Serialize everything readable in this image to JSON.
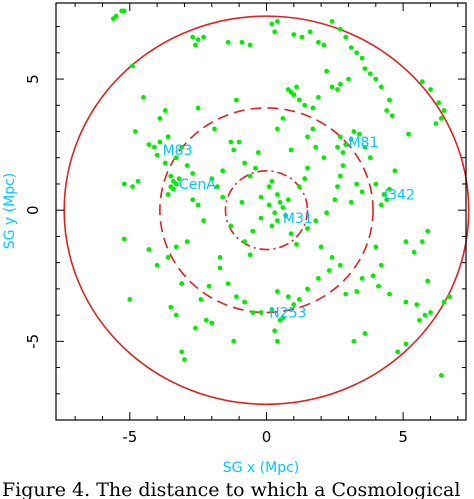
{
  "caption": "Figure 4.  The distance to which a Cosmological",
  "chart_data": {
    "type": "scatter",
    "xlabel": "SG x (Mpc)",
    "ylabel": "SG y (Mpc)",
    "xlim": [
      -7.7,
      7.3
    ],
    "ylim": [
      -8.0,
      7.9
    ],
    "xticks": [
      -5,
      0,
      5
    ],
    "yticks": [
      -5,
      0,
      5
    ],
    "axis_label_color": "#00c8ff",
    "point_color": "#00ee00",
    "circle_color": "#dd2020",
    "circles": [
      {
        "radius": 7.4,
        "style": "solid"
      },
      {
        "radius": 3.9,
        "style": "dashed"
      },
      {
        "radius": 1.5,
        "style": "dash-dot"
      }
    ],
    "points": [
      [
        -5.5,
        7.4
      ],
      [
        -5.3,
        7.6
      ],
      [
        -5.6,
        7.3
      ],
      [
        -5.2,
        7.6
      ],
      [
        -4.9,
        5.5
      ],
      [
        -2.7,
        6.6
      ],
      [
        -2.6,
        6.3
      ],
      [
        -2.5,
        6.5
      ],
      [
        -2.3,
        6.6
      ],
      [
        -1.4,
        6.4
      ],
      [
        -0.9,
        6.4
      ],
      [
        -0.6,
        6.3
      ],
      [
        0.3,
        6.8
      ],
      [
        0.2,
        7.1
      ],
      [
        0.4,
        7.2
      ],
      [
        1.0,
        6.7
      ],
      [
        1.3,
        6.6
      ],
      [
        1.6,
        6.8
      ],
      [
        1.9,
        6.4
      ],
      [
        2.1,
        6.3
      ],
      [
        2.4,
        7.2
      ],
      [
        2.7,
        6.9
      ],
      [
        2.9,
        6.6
      ],
      [
        3.1,
        6.2
      ],
      [
        3.3,
        6.0
      ],
      [
        3.5,
        5.8
      ],
      [
        3.6,
        5.4
      ],
      [
        3.8,
        5.2
      ],
      [
        3.0,
        5.0
      ],
      [
        2.7,
        4.8
      ],
      [
        2.2,
        5.3
      ],
      [
        2.4,
        4.7
      ],
      [
        2.6,
        4.6
      ],
      [
        1.9,
        4.3
      ],
      [
        1.7,
        3.9
      ],
      [
        1.2,
        4.2
      ],
      [
        1.4,
        4.0
      ],
      [
        0.8,
        4.6
      ],
      [
        0.9,
        4.5
      ],
      [
        1.0,
        4.4
      ],
      [
        1.1,
        4.7
      ],
      [
        0.6,
        3.5
      ],
      [
        0.4,
        3.1
      ],
      [
        4.0,
        5.0
      ],
      [
        4.2,
        4.7
      ],
      [
        4.5,
        4.2
      ],
      [
        4.4,
        3.8
      ],
      [
        4.6,
        3.6
      ],
      [
        5.7,
        4.9
      ],
      [
        6.0,
        4.6
      ],
      [
        6.3,
        4.1
      ],
      [
        6.5,
        3.8
      ],
      [
        6.4,
        3.5
      ],
      [
        6.2,
        3.3
      ],
      [
        -4.8,
        3.0
      ],
      [
        -3.9,
        3.5
      ],
      [
        -4.3,
        2.5
      ],
      [
        -4.1,
        2.4
      ],
      [
        -3.9,
        2.6
      ],
      [
        -3.6,
        2.8
      ],
      [
        -4.0,
        2.1
      ],
      [
        -3.7,
        1.8
      ],
      [
        -3.3,
        2.0
      ],
      [
        -3.1,
        2.4
      ],
      [
        -2.9,
        1.7
      ],
      [
        -2.7,
        1.4
      ],
      [
        -3.5,
        1.3
      ],
      [
        -3.4,
        1.1
      ],
      [
        -3.3,
        1.0
      ],
      [
        -3.5,
        0.9
      ],
      [
        -3.2,
        1.2
      ],
      [
        -3.4,
        0.8
      ],
      [
        -3.6,
        0.6
      ],
      [
        -2.7,
        0.4
      ],
      [
        -2.5,
        0.2
      ],
      [
        -4.7,
        1.1
      ],
      [
        -4.9,
        0.9
      ],
      [
        -5.2,
        1.0
      ],
      [
        -2.0,
        1.2
      ],
      [
        -1.8,
        0.9
      ],
      [
        -1.6,
        1.5
      ],
      [
        -1.2,
        2.3
      ],
      [
        -1.0,
        2.6
      ],
      [
        -0.8,
        1.8
      ],
      [
        -0.6,
        1.3
      ],
      [
        -0.4,
        1.6
      ],
      [
        -0.2,
        0.5
      ],
      [
        0.1,
        0.9
      ],
      [
        0.2,
        1.1
      ],
      [
        0.4,
        0.6
      ],
      [
        0.1,
        0.2
      ],
      [
        0.3,
        -0.1
      ],
      [
        0.5,
        0.3
      ],
      [
        0.6,
        0.1
      ],
      [
        0.7,
        -0.2
      ],
      [
        0.8,
        0.4
      ],
      [
        0.4,
        -0.4
      ],
      [
        0.2,
        -0.6
      ],
      [
        -0.2,
        -0.3
      ],
      [
        -0.5,
        -0.8
      ],
      [
        -0.8,
        -1.2
      ],
      [
        -0.9,
        0.3
      ],
      [
        -1.3,
        -0.6
      ],
      [
        0.9,
        -0.9
      ],
      [
        1.1,
        -1.3
      ],
      [
        1.5,
        -0.7
      ],
      [
        1.8,
        -0.4
      ],
      [
        2.2,
        -0.1
      ],
      [
        2.5,
        0.4
      ],
      [
        2.6,
        0.9
      ],
      [
        2.7,
        1.3
      ],
      [
        2.8,
        1.7
      ],
      [
        2.8,
        2.2
      ],
      [
        2.6,
        2.4
      ],
      [
        2.9,
        2.5
      ],
      [
        3.1,
        2.7
      ],
      [
        2.7,
        2.8
      ],
      [
        3.4,
        2.9
      ],
      [
        3.6,
        2.4
      ],
      [
        3.2,
        3.0
      ],
      [
        2.1,
        2.0
      ],
      [
        1.8,
        2.4
      ],
      [
        1.5,
        2.8
      ],
      [
        1.7,
        3.1
      ],
      [
        3.3,
        1.0
      ],
      [
        3.5,
        0.7
      ],
      [
        3.1,
        0.3
      ],
      [
        4.0,
        1.0
      ],
      [
        4.3,
        0.6
      ],
      [
        4.4,
        0.4
      ],
      [
        4.2,
        0.2
      ],
      [
        4.5,
        0.8
      ],
      [
        5.1,
        -1.2
      ],
      [
        5.4,
        -1.6
      ],
      [
        5.7,
        -1.2
      ],
      [
        5.9,
        -0.8
      ],
      [
        4.0,
        -1.4
      ],
      [
        4.2,
        -2.1
      ],
      [
        3.9,
        -2.5
      ],
      [
        4.1,
        -2.9
      ],
      [
        4.5,
        -3.2
      ],
      [
        5.1,
        -3.5
      ],
      [
        5.5,
        -3.6
      ],
      [
        5.9,
        -2.7
      ],
      [
        3.5,
        -2.6
      ],
      [
        3.3,
        -3.1
      ],
      [
        2.9,
        -3.2
      ],
      [
        2.7,
        -2.1
      ],
      [
        2.3,
        -2.3
      ],
      [
        1.9,
        -2.6
      ],
      [
        1.5,
        -3.0
      ],
      [
        1.2,
        -3.4
      ],
      [
        1.0,
        -3.6
      ],
      [
        0.8,
        -3.3
      ],
      [
        0.4,
        -3.1
      ],
      [
        0.2,
        -3.8
      ],
      [
        -0.2,
        -3.9
      ],
      [
        -0.5,
        -3.9
      ],
      [
        -0.8,
        -3.5
      ],
      [
        -1.1,
        -3.3
      ],
      [
        -1.4,
        -2.8
      ],
      [
        -1.7,
        -2.2
      ],
      [
        -2.1,
        -2.9
      ],
      [
        -2.4,
        -3.4
      ],
      [
        -2.2,
        -4.2
      ],
      [
        -2.0,
        -4.3
      ],
      [
        -2.6,
        -4.5
      ],
      [
        -3.3,
        -4.0
      ],
      [
        -3.5,
        -3.7
      ],
      [
        -3.1,
        -2.8
      ],
      [
        -3.6,
        -1.8
      ],
      [
        -3.3,
        -1.4
      ],
      [
        -2.9,
        -1.2
      ],
      [
        -4.3,
        -1.5
      ],
      [
        -4.0,
        -2.1
      ],
      [
        -5.0,
        -3.4
      ],
      [
        -5.2,
        -1.1
      ],
      [
        -3.0,
        -5.7
      ],
      [
        -3.1,
        -5.4
      ],
      [
        -1.2,
        -5.0
      ],
      [
        0.3,
        -4.6
      ],
      [
        0.5,
        -4.2
      ],
      [
        0.6,
        -4.1
      ],
      [
        0.4,
        -5.0
      ],
      [
        3.6,
        -4.7
      ],
      [
        3.2,
        -5.0
      ],
      [
        4.8,
        -5.4
      ],
      [
        5.1,
        -5.1
      ],
      [
        5.6,
        -4.2
      ],
      [
        5.8,
        -4.0
      ],
      [
        6.0,
        -3.9
      ],
      [
        6.5,
        -3.5
      ],
      [
        6.7,
        -3.3
      ],
      [
        6.4,
        -6.3
      ],
      [
        -1.3,
        2.6
      ],
      [
        -1.6,
        0.5
      ],
      [
        -2.3,
        -0.4
      ],
      [
        -1.7,
        -1.8
      ],
      [
        1.2,
        0.9
      ],
      [
        1.5,
        1.6
      ],
      [
        -0.6,
        -1.7
      ],
      [
        -0.3,
        2.2
      ],
      [
        0.9,
        2.3
      ],
      [
        1.4,
        1.2
      ],
      [
        2.0,
        -1.4
      ],
      [
        2.4,
        -1.8
      ],
      [
        -1.9,
        3.1
      ],
      [
        -2.5,
        3.9
      ],
      [
        -1.1,
        4.2
      ],
      [
        3.8,
        2.0
      ],
      [
        4.7,
        1.5
      ],
      [
        5.2,
        2.9
      ],
      [
        -4.5,
        4.3
      ],
      [
        -3.7,
        3.8
      ]
    ],
    "labels": [
      {
        "text": "M83",
        "x": -3.8,
        "y": 2.3
      },
      {
        "text": "M81",
        "x": 3.0,
        "y": 2.6
      },
      {
        "text": "CenA",
        "x": -3.2,
        "y": 1.0
      },
      {
        "text": "I342",
        "x": 4.3,
        "y": 0.6
      },
      {
        "text": "M31",
        "x": 0.6,
        "y": -0.3
      },
      {
        "text": "N253",
        "x": 0.1,
        "y": -3.9
      }
    ]
  }
}
